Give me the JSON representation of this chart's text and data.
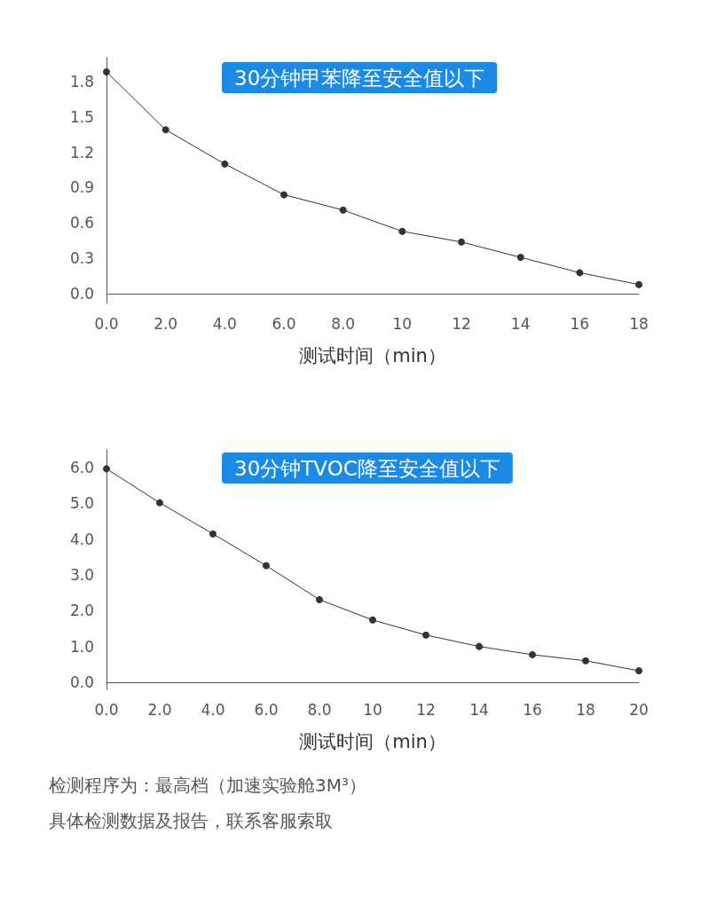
{
  "chart_data": [
    {
      "type": "line",
      "title": "30分钟甲苯降至安全值以下",
      "xlabel": "测试时间（min）",
      "categories": [
        "0.0",
        "2.0",
        "4.0",
        "6.0",
        "8.0",
        "10",
        "12",
        "14",
        "16",
        "18"
      ],
      "series": [
        {
          "color": "#333333",
          "values": [
            1.88,
            1.39,
            1.1,
            0.84,
            0.71,
            0.53,
            0.44,
            0.31,
            0.18,
            0.08
          ]
        }
      ],
      "ylim": [
        -0.08,
        2.0
      ],
      "yticks": [
        {
          "value": 0,
          "label": "0.0"
        },
        0.3,
        0.6,
        0.9,
        1.2,
        1.5,
        1.8
      ],
      "grid": false,
      "marker": "circle",
      "line_style": "solid"
    },
    {
      "type": "line",
      "title": "30分钟TVOC降至安全值以下",
      "xlabel": "测试时间（min）",
      "categories": [
        "0.0",
        "2.0",
        "4.0",
        "6.0",
        "8.0",
        "10",
        "12",
        "14",
        "16",
        "18",
        "20"
      ],
      "series": [
        {
          "color": "#333333",
          "values": [
            5.97,
            5.02,
            4.15,
            3.26,
            2.31,
            1.74,
            1.32,
            1.0,
            0.77,
            0.6,
            0.32
          ]
        }
      ],
      "ylim": [
        -0.2,
        6.5
      ],
      "yticks": [
        {
          "value": 0,
          "label": "0.0"
        },
        {
          "value": 1,
          "label": "1.0"
        },
        {
          "value": 2,
          "label": "2.0"
        },
        {
          "value": 3,
          "label": "3.0"
        },
        {
          "value": 4,
          "label": "4.0"
        },
        {
          "value": 5,
          "label": "5.0"
        },
        {
          "value": 6,
          "label": "6.0"
        }
      ],
      "grid": false,
      "marker": "circle",
      "line_style": "solid",
      "annotations": [
        "检测程序为：最高档（加速实验舱3M³）",
        "具体检测数据及报告，联系客服索取"
      ]
    }
  ]
}
